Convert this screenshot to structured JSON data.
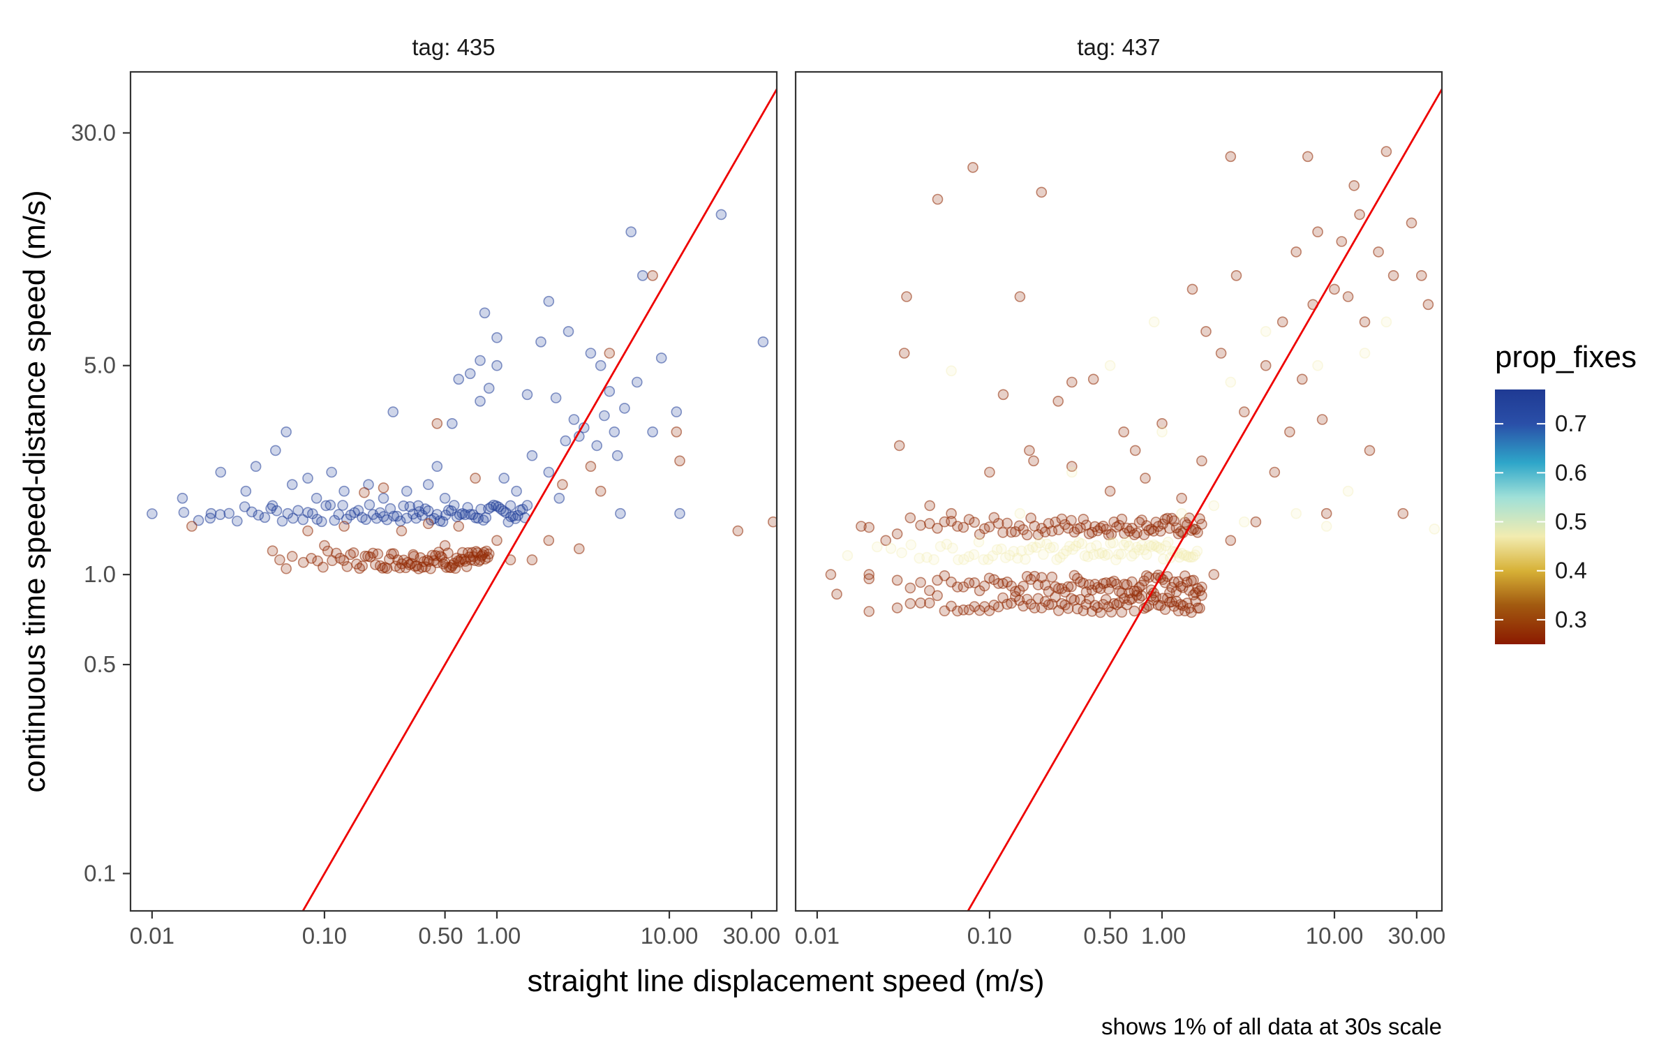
{
  "chart_data": {
    "type": "scatter",
    "xlabel": "straight line displacement speed (m/s)",
    "ylabel": "continuous time speed-distance speed (m/s)",
    "caption": "shows 1% of all data at 30s scale",
    "x_scale": "log10",
    "y_scale": "log10",
    "xlim": [
      0.0075,
      42
    ],
    "ylim": [
      0.075,
      48
    ],
    "x_ticks": [
      0.01,
      0.1,
      0.5,
      1.0,
      10.0,
      30.0
    ],
    "x_tick_labels": [
      "0.01",
      "0.10",
      "0.50",
      "1.00",
      "10.00",
      "30.00"
    ],
    "y_ticks": [
      0.1,
      0.5,
      1.0,
      5.0,
      30.0
    ],
    "y_tick_labels": [
      "0.1",
      "0.5",
      "1.0",
      "5.0",
      "30.0"
    ],
    "reference_line": {
      "description": "y = x",
      "color": "#ee0000"
    },
    "grid": false,
    "legend": {
      "title": "prop_fixes",
      "position": "right",
      "type": "colorbar",
      "range": [
        0.25,
        0.77
      ],
      "ticks": [
        0.3,
        0.4,
        0.5,
        0.6,
        0.7
      ],
      "tick_labels": [
        "0.3",
        "0.4",
        "0.5",
        "0.6",
        "0.7"
      ],
      "colors": [
        {
          "value": 0.25,
          "color": "#8b1a00"
        },
        {
          "value": 0.33,
          "color": "#a25a10"
        },
        {
          "value": 0.4,
          "color": "#d7b136"
        },
        {
          "value": 0.47,
          "color": "#f2ecb0"
        },
        {
          "value": 0.55,
          "color": "#9fe0d8"
        },
        {
          "value": 0.62,
          "color": "#2ea6c9"
        },
        {
          "value": 0.7,
          "color": "#2a4fa8"
        },
        {
          "value": 0.77,
          "color": "#1f3a93"
        }
      ]
    },
    "panels": [
      {
        "strip_label": "tag: 435",
        "series": [
          {
            "prop_fixes": 0.75,
            "description": "dense horizontal band",
            "band": {
              "x_range": [
                0.01,
                1.5
              ],
              "y": 1.6
            },
            "points": [
              [
                0.015,
                1.8
              ],
              [
                0.022,
                1.6
              ],
              [
                0.025,
                2.2
              ],
              [
                0.035,
                1.9
              ],
              [
                0.04,
                2.3
              ],
              [
                0.05,
                1.7
              ],
              [
                0.052,
                2.6
              ],
              [
                0.06,
                3.0
              ],
              [
                0.065,
                2.0
              ],
              [
                0.08,
                2.1
              ],
              [
                0.09,
                1.8
              ],
              [
                0.11,
                2.2
              ],
              [
                0.13,
                1.9
              ],
              [
                0.18,
                2.0
              ],
              [
                0.22,
                1.8
              ],
              [
                0.25,
                3.5
              ],
              [
                0.3,
                1.9
              ],
              [
                0.35,
                1.7
              ],
              [
                0.4,
                2.0
              ],
              [
                0.45,
                2.3
              ],
              [
                0.5,
                1.8
              ],
              [
                0.55,
                3.2
              ],
              [
                0.6,
                4.5
              ],
              [
                0.7,
                4.7
              ],
              [
                0.8,
                3.8
              ],
              [
                0.8,
                5.2
              ],
              [
                0.85,
                7.5
              ],
              [
                0.9,
                4.2
              ],
              [
                1.0,
                5.0
              ],
              [
                1.0,
                6.2
              ],
              [
                1.1,
                2.1
              ],
              [
                1.2,
                1.7
              ],
              [
                1.3,
                1.9
              ],
              [
                1.5,
                4.0
              ],
              [
                1.6,
                2.5
              ],
              [
                1.8,
                6.0
              ],
              [
                2.0,
                8.2
              ],
              [
                2.0,
                2.2
              ],
              [
                2.2,
                3.9
              ],
              [
                2.3,
                1.8
              ],
              [
                2.5,
                2.8
              ],
              [
                2.6,
                6.5
              ],
              [
                2.8,
                3.3
              ],
              [
                3.0,
                2.9
              ],
              [
                3.2,
                3.1
              ],
              [
                3.5,
                5.5
              ],
              [
                3.8,
                2.7
              ],
              [
                4.0,
                5.0
              ],
              [
                4.2,
                3.4
              ],
              [
                4.5,
                4.1
              ],
              [
                4.8,
                3.0
              ],
              [
                5.0,
                2.5
              ],
              [
                5.2,
                1.6
              ],
              [
                5.5,
                3.6
              ],
              [
                6.0,
                14.0
              ],
              [
                6.5,
                4.4
              ],
              [
                7.0,
                10.0
              ],
              [
                8.0,
                3.0
              ],
              [
                9.0,
                5.3
              ],
              [
                11.0,
                3.5
              ],
              [
                11.5,
                1.6
              ],
              [
                20.0,
                16.0
              ],
              [
                35.0,
                6.0
              ]
            ]
          },
          {
            "prop_fixes": 0.27,
            "description": "lower band",
            "band": {
              "x_range": [
                0.06,
                0.9
              ],
              "y": 1.12
            },
            "points": [
              [
                0.017,
                1.45
              ],
              [
                0.05,
                1.2
              ],
              [
                0.055,
                1.12
              ],
              [
                0.065,
                1.15
              ],
              [
                0.08,
                1.4
              ],
              [
                0.1,
                1.25
              ],
              [
                0.13,
                1.45
              ],
              [
                0.17,
                1.88
              ],
              [
                0.22,
                1.95
              ],
              [
                0.28,
                1.4
              ],
              [
                0.33,
                1.15
              ],
              [
                0.4,
                1.48
              ],
              [
                0.45,
                3.2
              ],
              [
                0.5,
                1.25
              ],
              [
                0.6,
                1.45
              ],
              [
                0.75,
                2.1
              ],
              [
                1.0,
                1.3
              ],
              [
                1.2,
                1.12
              ],
              [
                1.6,
                1.12
              ],
              [
                2.0,
                1.3
              ],
              [
                2.4,
                2.0
              ],
              [
                3.0,
                1.22
              ],
              [
                3.5,
                2.3
              ],
              [
                4.0,
                1.9
              ],
              [
                4.5,
                5.5
              ],
              [
                8.0,
                10.0
              ],
              [
                11.0,
                3.0
              ],
              [
                11.5,
                2.4
              ],
              [
                25.0,
                1.4
              ],
              [
                40.0,
                1.5
              ]
            ]
          }
        ]
      },
      {
        "strip_label": "tag: 437",
        "series": [
          {
            "prop_fixes": 0.27,
            "description": "three stacked horizontal bands",
            "band": {
              "x_range": [
                0.02,
                1.7
              ],
              "y": [
                1.45,
                0.93,
                0.8
              ]
            },
            "points": [
              [
                0.012,
                1.0
              ],
              [
                0.013,
                0.86
              ],
              [
                0.018,
                1.45
              ],
              [
                0.02,
                1.0
              ],
              [
                0.025,
                1.3
              ],
              [
                0.03,
                2.7
              ],
              [
                0.032,
                5.5
              ],
              [
                0.033,
                8.5
              ],
              [
                0.045,
                1.7
              ],
              [
                0.05,
                18.0
              ],
              [
                0.06,
                1.6
              ],
              [
                0.08,
                23.0
              ],
              [
                0.1,
                2.2
              ],
              [
                0.12,
                4.0
              ],
              [
                0.15,
                8.5
              ],
              [
                0.17,
                2.6
              ],
              [
                0.18,
                2.4
              ],
              [
                0.2,
                19.0
              ],
              [
                0.25,
                3.8
              ],
              [
                0.3,
                4.4
              ],
              [
                0.3,
                2.3
              ],
              [
                0.4,
                4.5
              ],
              [
                0.5,
                1.9
              ],
              [
                0.6,
                3.0
              ],
              [
                0.7,
                2.6
              ],
              [
                0.8,
                2.1
              ],
              [
                1.0,
                3.2
              ],
              [
                1.3,
                1.8
              ],
              [
                1.5,
                9.0
              ],
              [
                1.7,
                2.4
              ],
              [
                1.8,
                6.5
              ],
              [
                2.0,
                1.0
              ],
              [
                2.2,
                5.5
              ],
              [
                2.5,
                1.3
              ],
              [
                2.5,
                25.0
              ],
              [
                2.7,
                10.0
              ],
              [
                3.0,
                3.5
              ],
              [
                3.5,
                1.5
              ],
              [
                4.0,
                5.0
              ],
              [
                4.5,
                2.2
              ],
              [
                5.0,
                7.0
              ],
              [
                5.5,
                3.0
              ],
              [
                6.0,
                12.0
              ],
              [
                6.5,
                4.5
              ],
              [
                7.0,
                25.0
              ],
              [
                7.5,
                8.0
              ],
              [
                8.0,
                14.0
              ],
              [
                8.5,
                3.3
              ],
              [
                9.0,
                1.6
              ],
              [
                10.0,
                9.0
              ],
              [
                11.0,
                13.0
              ],
              [
                12.0,
                8.5
              ],
              [
                13.0,
                20.0
              ],
              [
                14.0,
                16.0
              ],
              [
                15.0,
                7.0
              ],
              [
                16.0,
                2.6
              ],
              [
                18.0,
                12.0
              ],
              [
                20.0,
                26.0
              ],
              [
                22.0,
                10.0
              ],
              [
                25.0,
                1.6
              ],
              [
                28.0,
                15.0
              ],
              [
                32.0,
                10.0
              ],
              [
                35.0,
                8.0
              ]
            ]
          },
          {
            "prop_fixes": 0.47,
            "description": "faint band",
            "band": {
              "x_range": [
                0.015,
                1.6
              ],
              "y": 1.2
            },
            "points": [
              [
                0.06,
                4.8
              ],
              [
                0.15,
                1.6
              ],
              [
                0.3,
                2.2
              ],
              [
                0.5,
                5.0
              ],
              [
                0.9,
                7.0
              ],
              [
                1.0,
                3.0
              ],
              [
                1.3,
                1.6
              ],
              [
                2.0,
                1.7
              ],
              [
                2.5,
                4.4
              ],
              [
                3.0,
                1.5
              ],
              [
                4.0,
                6.5
              ],
              [
                6.0,
                1.6
              ],
              [
                8.0,
                5.0
              ],
              [
                9.0,
                1.45
              ],
              [
                12.0,
                1.9
              ],
              [
                15.0,
                5.5
              ],
              [
                20.0,
                7.0
              ],
              [
                38.0,
                1.42
              ]
            ]
          }
        ]
      }
    ]
  }
}
